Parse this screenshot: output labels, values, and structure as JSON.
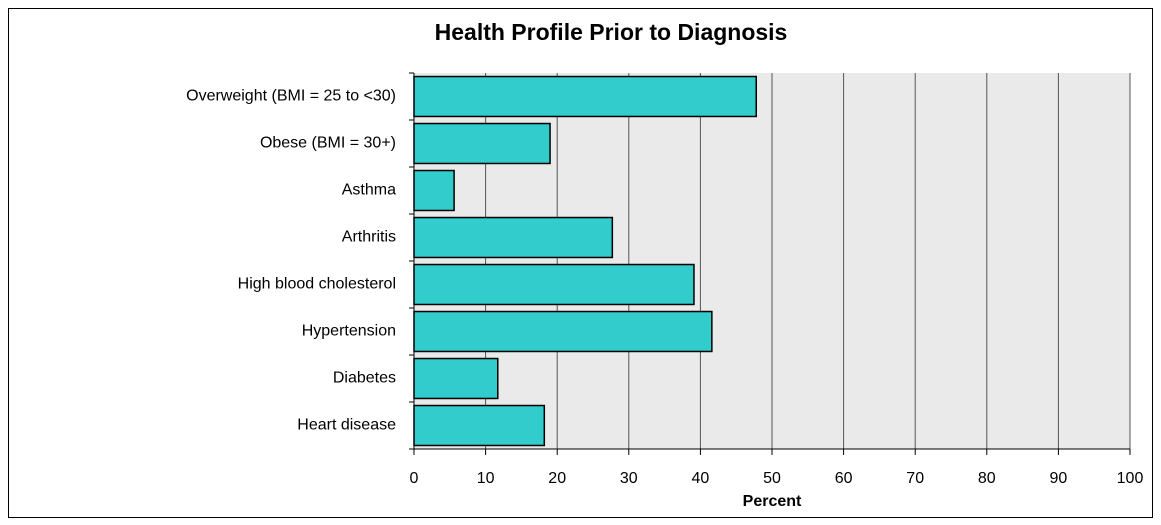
{
  "chart_data": {
    "type": "bar",
    "orientation": "horizontal",
    "title": "Health Profile Prior to Diagnosis",
    "xlabel": "Percent",
    "categories": [
      "Overweight (BMI = 25 to <30)",
      "Obese (BMI = 30+)",
      "Asthma",
      "Arthritis",
      "High blood cholesterol",
      "Hypertension",
      "Diabetes",
      "Heart disease"
    ],
    "values": [
      47.8,
      19.0,
      5.6,
      27.7,
      39.1,
      41.6,
      11.7,
      18.2
    ],
    "color": "#33cccc",
    "xlim": [
      0,
      100
    ],
    "xticks": [
      0,
      10,
      20,
      30,
      40,
      50,
      60,
      70,
      80,
      90,
      100
    ],
    "grid": true
  }
}
